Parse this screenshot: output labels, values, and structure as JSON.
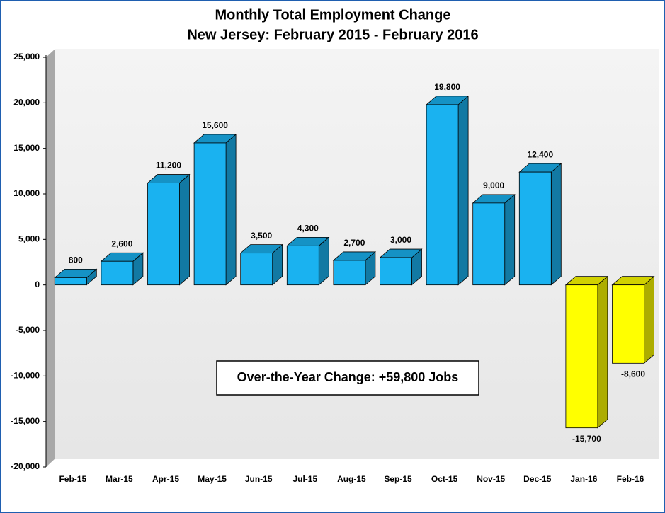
{
  "chart_data": {
    "type": "bar3d",
    "title": "Monthly Total Employment Change",
    "subtitle": "New Jersey: February 2015 - February 2016",
    "annotation": "Over-the-Year Change: +59,800 Jobs",
    "categories": [
      "Feb-15",
      "Mar-15",
      "Apr-15",
      "May-15",
      "Jun-15",
      "Jul-15",
      "Aug-15",
      "Sep-15",
      "Oct-15",
      "Nov-15",
      "Dec-15",
      "Jan-16",
      "Feb-16"
    ],
    "values": [
      800,
      2600,
      11200,
      15600,
      3500,
      4300,
      2700,
      3000,
      19800,
      9000,
      12400,
      -15700,
      -8600
    ],
    "value_labels": [
      "800",
      "2,600",
      "11,200",
      "15,600",
      "3,500",
      "4,300",
      "2,700",
      "3,000",
      "19,800",
      "9,000",
      "12,400",
      "-15,700",
      "-8,600"
    ],
    "color": "#1ab2f0",
    "negative_color": "#ffff00",
    "ylim": [
      -20000,
      25000
    ],
    "yticks": [
      {
        "value": -20000,
        "label": "-20,000"
      },
      {
        "value": -15000,
        "label": "-15,000"
      },
      {
        "value": -10000,
        "label": "-10,000"
      },
      {
        "value": -5000,
        "label": "-5,000"
      },
      0,
      {
        "value": 5000,
        "label": "5,000"
      },
      {
        "value": 10000,
        "label": "10,000"
      },
      {
        "value": 15000,
        "label": "15,000"
      },
      {
        "value": 20000,
        "label": "20,000"
      },
      {
        "value": 25000,
        "label": "25,000"
      }
    ]
  }
}
